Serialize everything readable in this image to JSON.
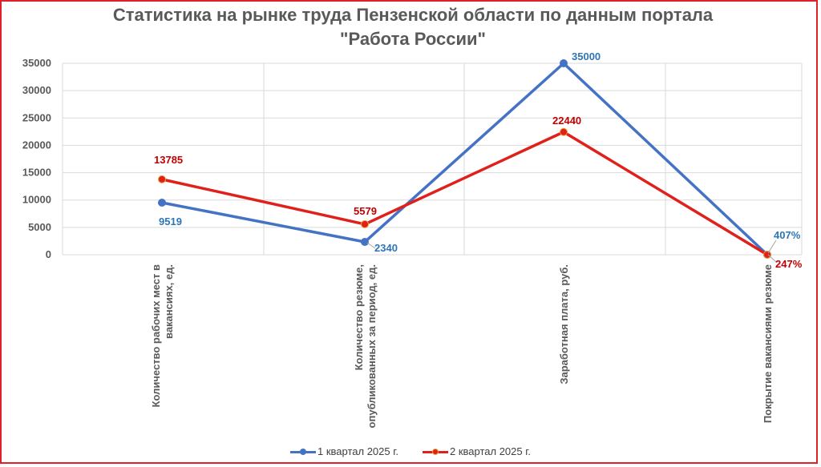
{
  "chart_data": {
    "type": "line",
    "title": "Статистика на рынке труда Пензенской области по данным портала \"Работа России\"",
    "categories": [
      [
        "Количество рабочих мест в",
        "вакансиях, ед."
      ],
      [
        "Количество резюме,",
        "опубликованных за период, ед."
      ],
      [
        "Заработная плата, руб."
      ],
      [
        "Покрытие вакансиями резюме"
      ]
    ],
    "yticks": [
      "0",
      "5000",
      "10000",
      "15000",
      "20000",
      "25000",
      "30000",
      "35000"
    ],
    "ylim": [
      0,
      35000
    ],
    "grid": true,
    "legend_position": "bottom",
    "series": [
      {
        "name": "1 квартал 2025 г.",
        "color": "#4472c4",
        "label_color": "#2e75b6",
        "values": [
          9519,
          2340,
          35000,
          4.07
        ],
        "labels": [
          "9519",
          "2340",
          "35000",
          "407%"
        ]
      },
      {
        "name": "2 квартал 2025 г.",
        "color": "#e0201b",
        "label_color": "#c00000",
        "values": [
          13785,
          5579,
          22440,
          2.47
        ],
        "labels": [
          "13785",
          "5579",
          "22440",
          "247%"
        ]
      }
    ]
  },
  "frame_color": "#e0202a"
}
